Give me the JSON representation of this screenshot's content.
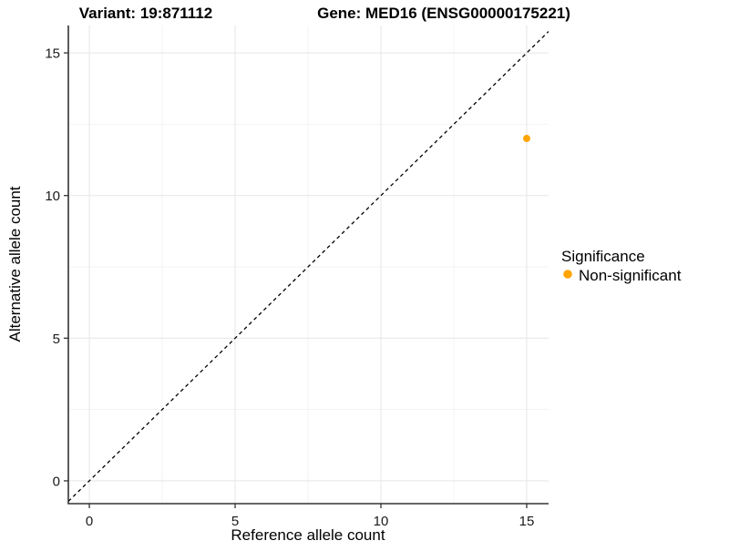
{
  "chart_data": {
    "type": "scatter",
    "title_left": "Variant: 19:871112",
    "title_right": "Gene: MED16 (ENSG00000175221)",
    "xlabel": "Reference allele count",
    "ylabel": "Alternative allele count",
    "xlim": [
      -0.72,
      15.75
    ],
    "ylim": [
      -0.8,
      15.96
    ],
    "x_ticks": [
      0,
      5,
      10,
      15
    ],
    "y_ticks": [
      0,
      5,
      10,
      15
    ],
    "x_minor_ticks": [
      2.5,
      7.5,
      12.5
    ],
    "y_minor_ticks": [
      2.5,
      7.5,
      12.5
    ],
    "grid": {
      "major_color": "#e8e8e8",
      "minor_color": "#f3f3f3"
    },
    "identity_line": {
      "slope": 1,
      "intercept": 0,
      "style": "dashed",
      "color": "#000000"
    },
    "series": [
      {
        "name": "Non-significant",
        "color": "#FFA500",
        "points": [
          {
            "x": 15,
            "y": 12
          }
        ]
      }
    ],
    "legend": {
      "title": "Significance",
      "position": "right",
      "entries": [
        {
          "label": "Non-significant",
          "color": "#FFA500"
        }
      ]
    },
    "axis_color": "#333333"
  }
}
